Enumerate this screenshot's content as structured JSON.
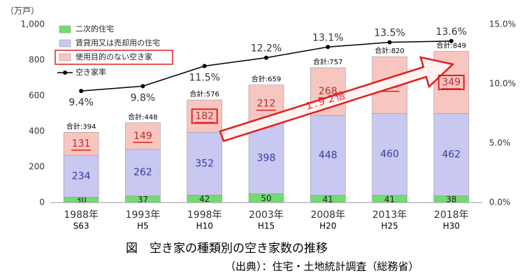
{
  "chart_data": {
    "type": "stacked_bar_line",
    "ylabel": "（万戸）",
    "categories": [
      "1988年",
      "1993年",
      "1998年",
      "2003年",
      "2008年",
      "2013年",
      "2018年"
    ],
    "era_labels": [
      "S63",
      "H5",
      "H10",
      "H15",
      "H20",
      "H25",
      "H30"
    ],
    "total_labels": [
      "合計:394",
      "合計:448",
      "合計:576",
      "合計:659",
      "合計:757",
      "合計:820",
      "合計:849"
    ],
    "series": [
      {
        "name": "二次的住宅",
        "color": "#6fdc6f",
        "values": [
          30,
          37,
          42,
          50,
          41,
          41,
          38
        ]
      },
      {
        "name": "賃貸用又は売却用の住宅",
        "color": "#c8c8f0",
        "values": [
          234,
          262,
          352,
          398,
          448,
          460,
          462
        ]
      },
      {
        "name": "使用目的のない空き家",
        "color": "#f8c6c0",
        "values": [
          131,
          149,
          182,
          212,
          268,
          318,
          349
        ]
      },
      {
        "name": "空き家率",
        "type": "line",
        "axis": "y2",
        "color": "#000000",
        "values": [
          9.4,
          9.8,
          11.5,
          12.2,
          13.1,
          13.5,
          13.6
        ],
        "value_labels": [
          "9.4%",
          "9.8%",
          "11.5%",
          "12.2%",
          "13.1%",
          "13.5%",
          "13.6%"
        ]
      }
    ],
    "ylim": [
      0,
      1000
    ],
    "yticks": [
      0,
      200,
      400,
      600,
      800,
      {
        "value": 1000,
        "label": "1,000"
      }
    ],
    "y2lim": [
      0,
      15
    ],
    "y2ticks": [
      {
        "value": 0,
        "label": "0.0%"
      },
      {
        "value": 5,
        "label": "5.0%"
      },
      {
        "value": 10,
        "label": "10.0%"
      },
      {
        "value": 15,
        "label": "15.0%"
      }
    ],
    "grid": false,
    "annotation": "１.９２倍",
    "caption": "図　空き家の種類別の空き家数の推移",
    "source": "（出典）：住宅・土地統計調査（総務省）"
  }
}
